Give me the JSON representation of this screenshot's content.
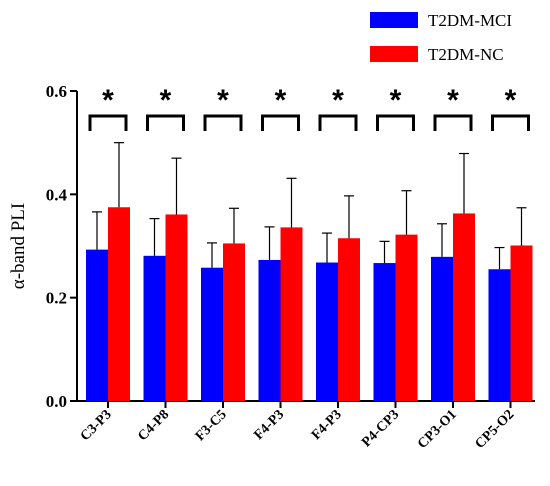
{
  "chart_data": {
    "type": "bar",
    "title": "",
    "xlabel": "",
    "ylabel": "α-band PLI",
    "ylim": [
      0,
      0.6
    ],
    "yticks": [
      "0.0",
      "0.2",
      "0.4",
      "0.6"
    ],
    "ytick_values": [
      0.0,
      0.2,
      0.4,
      0.6
    ],
    "grid": false,
    "legend_position": "top-right",
    "categories": [
      "C3-P3",
      "C4-P8",
      "F3-C5",
      "F4-P3",
      "F4-P3",
      "P4-CP3",
      "CP3-O1",
      "CP5-O2"
    ],
    "series": [
      {
        "name": "T2DM-MCI",
        "color": "#0000ff",
        "values": [
          0.293,
          0.281,
          0.258,
          0.273,
          0.268,
          0.267,
          0.279,
          0.255
        ],
        "error": [
          0.073,
          0.072,
          0.048,
          0.064,
          0.057,
          0.042,
          0.064,
          0.042
        ]
      },
      {
        "name": "T2DM-NC",
        "color": "#ff0000",
        "values": [
          0.375,
          0.361,
          0.305,
          0.336,
          0.315,
          0.322,
          0.363,
          0.301
        ],
        "error": [
          0.125,
          0.109,
          0.068,
          0.095,
          0.082,
          0.085,
          0.116,
          0.073
        ]
      }
    ],
    "significance": [
      "*",
      "*",
      "*",
      "*",
      "*",
      "*",
      "*",
      "*"
    ]
  }
}
